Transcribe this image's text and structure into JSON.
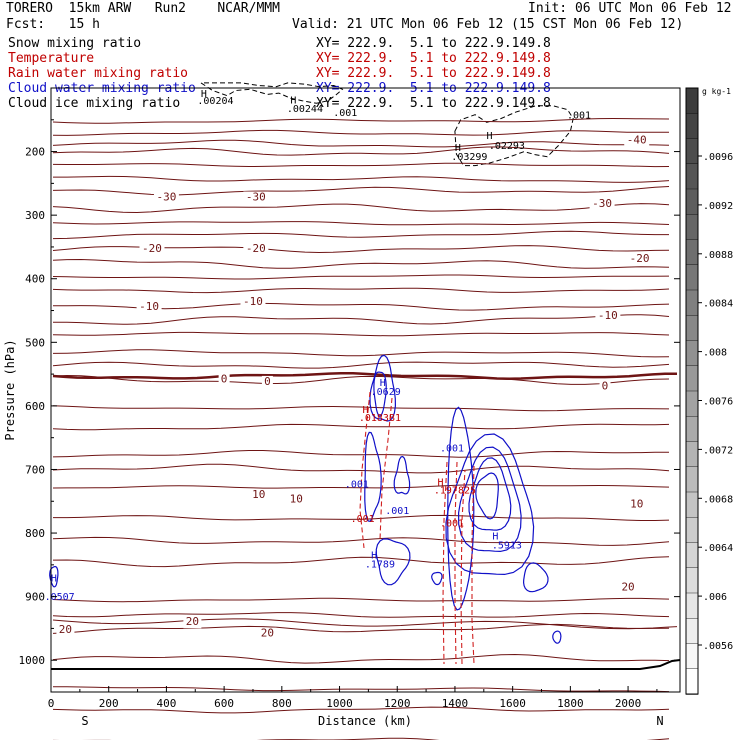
{
  "header": {
    "model": "TORERO  15km ARW   Run2    NCAR/MMM",
    "init": "Init: 06 UTC Mon 06 Feb 12",
    "fcst": "Fcst:   15 h",
    "valid": "Valid: 21 UTC Mon 06 Feb 12 (15 CST Mon 06 Feb 12)"
  },
  "legend": [
    {
      "label": "Snow mixing ratio",
      "color": "#000000",
      "xy": "XY= 222.9.  5.1 to 222.9.149.8",
      "xy_color": "#000000"
    },
    {
      "label": "Temperature",
      "color": "#c00000",
      "xy": "XY= 222.9.  5.1 to 222.9.149.8",
      "xy_color": "#c00000"
    },
    {
      "label": "Rain water mixing ratio",
      "color": "#c00000",
      "xy": "XY= 222.9.  5.1 to 222.9.149.8",
      "xy_color": "#c00000"
    },
    {
      "label": "Cloud water mixing ratio",
      "color": "#1010c8",
      "xy": "XY= 222.9.  5.1 to 222.9.149.8",
      "xy_color": "#1010c8"
    },
    {
      "label": "Cloud ice mixing ratio",
      "color": "#000000",
      "xy": "XY= 222.9.  5.1 to 222.9.149.8",
      "xy_color": "#000000"
    }
  ],
  "chart_data": {
    "type": "cross-section-contour",
    "xlabel": "Distance (km)",
    "ylabel": "Pressure (hPa)",
    "x_ticks": [
      0,
      200,
      400,
      600,
      800,
      1000,
      1200,
      1400,
      1600,
      1800,
      2000
    ],
    "y_ticks": [
      200,
      300,
      400,
      500,
      600,
      700,
      800,
      900,
      1000
    ],
    "xlim": [
      0,
      2180
    ],
    "ylim": [
      1050,
      100
    ],
    "x_end_labels": {
      "left": "S",
      "right": "N"
    },
    "temperature_isotherm_labels": [
      {
        "value": "-40",
        "x": 2030,
        "p": 187
      },
      {
        "value": "-30",
        "x": 400,
        "p": 277
      },
      {
        "value": "-30",
        "x": 710,
        "p": 277
      },
      {
        "value": "-30",
        "x": 1910,
        "p": 287
      },
      {
        "value": "-20",
        "x": 350,
        "p": 358
      },
      {
        "value": "-20",
        "x": 710,
        "p": 358
      },
      {
        "value": "-20",
        "x": 2040,
        "p": 374
      },
      {
        "value": "-10",
        "x": 340,
        "p": 449
      },
      {
        "value": "-10",
        "x": 700,
        "p": 441
      },
      {
        "value": "-10",
        "x": 1930,
        "p": 463
      },
      {
        "value": "0",
        "x": 600,
        "p": 563
      },
      {
        "value": "0",
        "x": 750,
        "p": 567
      },
      {
        "value": "0",
        "x": 1920,
        "p": 574
      },
      {
        "value": "10",
        "x": 720,
        "p": 745
      },
      {
        "value": "10",
        "x": 850,
        "p": 752
      },
      {
        "value": "10",
        "x": 2030,
        "p": 760
      },
      {
        "value": "20",
        "x": 50,
        "p": 957
      },
      {
        "value": "20",
        "x": 490,
        "p": 945
      },
      {
        "value": "20",
        "x": 750,
        "p": 963
      },
      {
        "value": "20",
        "x": 2000,
        "p": 890
      }
    ],
    "snow_labels": [
      {
        "text": "H",
        "x": 530,
        "p": 114
      },
      {
        "text": ".00204",
        "x": 570,
        "p": 125
      },
      {
        "text": "H",
        "x": 840,
        "p": 124
      },
      {
        "text": ".00244",
        "x": 880,
        "p": 138
      },
      {
        "text": ".001",
        "x": 1020,
        "p": 144
      },
      {
        "text": ".001",
        "x": 1830,
        "p": 148
      },
      {
        "text": "H",
        "x": 1520,
        "p": 180
      },
      {
        "text": ".02293",
        "x": 1580,
        "p": 196
      },
      {
        "text": "H",
        "x": 1410,
        "p": 199
      },
      {
        "text": ".03299",
        "x": 1450,
        "p": 213
      }
    ],
    "rain_labels": [
      {
        "text": "H",
        "x": 1090,
        "p": 611
      },
      {
        "text": ".018381",
        "x": 1140,
        "p": 624
      },
      {
        "text": "H",
        "x": 1350,
        "p": 725
      },
      {
        "text": ".197825",
        "x": 1400,
        "p": 738
      },
      {
        "text": ".001",
        "x": 1080,
        "p": 783
      },
      {
        "text": ".001",
        "x": 1390,
        "p": 790
      }
    ],
    "cloud_water_labels": [
      {
        "text": "H",
        "x": 1150,
        "p": 569
      },
      {
        "text": ".0629",
        "x": 1160,
        "p": 583
      },
      {
        "text": ".001",
        "x": 1390,
        "p": 672
      },
      {
        "text": ".001",
        "x": 1060,
        "p": 728
      },
      {
        "text": ".001",
        "x": 1200,
        "p": 770
      },
      {
        "text": "H",
        "x": 1540,
        "p": 810
      },
      {
        "text": ".5913",
        "x": 1580,
        "p": 824
      },
      {
        "text": "H",
        "x": 1120,
        "p": 840
      },
      {
        "text": ".1789",
        "x": 1140,
        "p": 854
      },
      {
        "text": "H",
        "x": 10,
        "p": 876
      },
      {
        "text": ".0507",
        "x": 30,
        "p": 905
      }
    ],
    "colorbar": {
      "unit": "g kg-1",
      "labels": [
        ".0096",
        ".0092",
        ".0088",
        ".0084",
        ".008",
        ".0076",
        ".0072",
        ".0068",
        ".0064",
        ".006",
        ".0056"
      ]
    }
  }
}
